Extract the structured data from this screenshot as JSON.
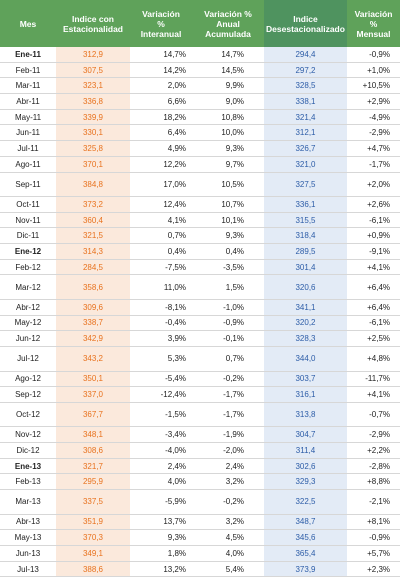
{
  "headers": {
    "mes": "Mes",
    "indice": "Indice con\nEstacionalidad",
    "var_interanual": "Variación\n%\nInteranual",
    "var_anual": "Variación %\nAnual\nAcumulada",
    "indice_desest": "Indice\nDesestacionalizado",
    "var_mensual": "Variación\n%\nMensual"
  },
  "colors": {
    "header_bg": "#5fa25a",
    "orange_text": "#e8721e",
    "orange_bg": "#fbe9dc",
    "blue_text": "#2d5da8",
    "blue_bg": "#e3ebf6"
  },
  "rows": [
    {
      "mes": "Ene-11",
      "indice": "312,9",
      "vi": "14,7%",
      "va": "14,7%",
      "des": "294,4",
      "vm": "-0,9%",
      "bold": true
    },
    {
      "mes": "Feb-11",
      "indice": "307,5",
      "vi": "14,2%",
      "va": "14,5%",
      "des": "297,2",
      "vm": "+1,0%"
    },
    {
      "mes": "Mar-11",
      "indice": "323,1",
      "vi": "2,0%",
      "va": "9,9%",
      "des": "328,5",
      "vm": "+10,5%"
    },
    {
      "mes": "Abr-11",
      "indice": "336,8",
      "vi": "6,6%",
      "va": "9,0%",
      "des": "338,1",
      "vm": "+2,9%"
    },
    {
      "mes": "May-11",
      "indice": "339,9",
      "vi": "18,2%",
      "va": "10,8%",
      "des": "321,4",
      "vm": "-4,9%"
    },
    {
      "mes": "Jun-11",
      "indice": "330,1",
      "vi": "6,4%",
      "va": "10,0%",
      "des": "312,1",
      "vm": "-2,9%"
    },
    {
      "mes": "Jul-11",
      "indice": "325,8",
      "vi": "4,9%",
      "va": "9,3%",
      "des": "326,7",
      "vm": "+4,7%"
    },
    {
      "mes": "Ago-11",
      "indice": "370,1",
      "vi": "12,2%",
      "va": "9,7%",
      "des": "321,0",
      "vm": "-1,7%"
    },
    {
      "mes": "Sep-11",
      "indice": "384,8",
      "vi": "17,0%",
      "va": "10,5%",
      "des": "327,5",
      "vm": "+2,0%",
      "tall": true
    },
    {
      "mes": "Oct-11",
      "indice": "373,2",
      "vi": "12,4%",
      "va": "10,7%",
      "des": "336,1",
      "vm": "+2,6%"
    },
    {
      "mes": "Nov-11",
      "indice": "360,4",
      "vi": "4,1%",
      "va": "10,1%",
      "des": "315,5",
      "vm": "-6,1%"
    },
    {
      "mes": "Dic-11",
      "indice": "321,5",
      "vi": "0,7%",
      "va": "9,3%",
      "des": "318,4",
      "vm": "+0,9%"
    },
    {
      "mes": "Ene-12",
      "indice": "314,3",
      "vi": "0,4%",
      "va": "0,4%",
      "des": "289,5",
      "vm": "-9,1%",
      "bold": true
    },
    {
      "mes": "Feb-12",
      "indice": "284,5",
      "vi": "-7,5%",
      "va": "-3,5%",
      "des": "301,4",
      "vm": "+4,1%"
    },
    {
      "mes": "Mar-12",
      "indice": "358,6",
      "vi": "11,0%",
      "va": "1,5%",
      "des": "320,6",
      "vm": "+6,4%",
      "tall": true
    },
    {
      "mes": "Abr-12",
      "indice": "309,6",
      "vi": "-8,1%",
      "va": "-1,0%",
      "des": "341,1",
      "vm": "+6,4%"
    },
    {
      "mes": "May-12",
      "indice": "338,7",
      "vi": "-0,4%",
      "va": "-0,9%",
      "des": "320,2",
      "vm": "-6,1%"
    },
    {
      "mes": "Jun-12",
      "indice": "342,9",
      "vi": "3,9%",
      "va": "-0,1%",
      "des": "328,3",
      "vm": "+2,5%"
    },
    {
      "mes": "Jul-12",
      "indice": "343,2",
      "vi": "5,3%",
      "va": "0,7%",
      "des": "344,0",
      "vm": "+4,8%",
      "tall": true
    },
    {
      "mes": "Ago-12",
      "indice": "350,1",
      "vi": "-5,4%",
      "va": "-0,2%",
      "des": "303,7",
      "vm": "-11,7%"
    },
    {
      "mes": "Sep-12",
      "indice": "337,0",
      "vi": "-12,4%",
      "va": "-1,7%",
      "des": "316,1",
      "vm": "+4,1%"
    },
    {
      "mes": "Oct-12",
      "indice": "367,7",
      "vi": "-1,5%",
      "va": "-1,7%",
      "des": "313,8",
      "vm": "-0,7%",
      "tall": true
    },
    {
      "mes": "Nov-12",
      "indice": "348,1",
      "vi": "-3,4%",
      "va": "-1,9%",
      "des": "304,7",
      "vm": "-2,9%"
    },
    {
      "mes": "Dic-12",
      "indice": "308,6",
      "vi": "-4,0%",
      "va": "-2,0%",
      "des": "311,4",
      "vm": "+2,2%"
    },
    {
      "mes": "Ene-13",
      "indice": "321,7",
      "vi": "2,4%",
      "va": "2,4%",
      "des": "302,6",
      "vm": "-2,8%",
      "bold": true
    },
    {
      "mes": "Feb-13",
      "indice": "295,9",
      "vi": "4,0%",
      "va": "3,2%",
      "des": "329,3",
      "vm": "+8,8%"
    },
    {
      "mes": "Mar-13",
      "indice": "337,5",
      "vi": "-5,9%",
      "va": "-0,2%",
      "des": "322,5",
      "vm": "-2,1%",
      "tall": true
    },
    {
      "mes": "Abr-13",
      "indice": "351,9",
      "vi": "13,7%",
      "va": "3,2%",
      "des": "348,7",
      "vm": "+8,1%"
    },
    {
      "mes": "May-13",
      "indice": "370,3",
      "vi": "9,3%",
      "va": "4,5%",
      "des": "345,6",
      "vm": "-0,9%"
    },
    {
      "mes": "Jun-13",
      "indice": "349,1",
      "vi": "1,8%",
      "va": "4,0%",
      "des": "365,4",
      "vm": "+5,7%"
    },
    {
      "mes": "Jul-13",
      "indice": "388,6",
      "vi": "13,2%",
      "va": "5,4%",
      "des": "373,9",
      "vm": "+2,3%"
    }
  ]
}
